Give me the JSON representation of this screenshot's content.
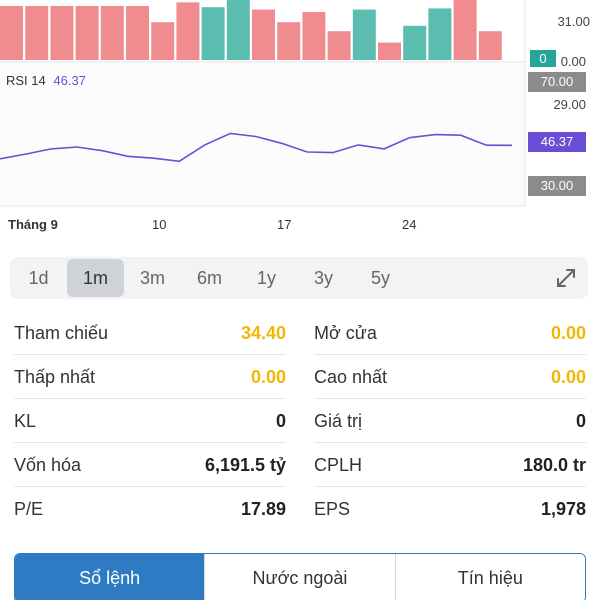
{
  "chart": {
    "volume_axis_top": "31.00",
    "volume_badge": "0",
    "volume_axis_zero": "0.00",
    "rsi_label": "RSI 14",
    "rsi_value": "46.37",
    "rsi_badge_upper": "70.00",
    "rsi_axis_29": "29.00",
    "rsi_badge_current": "46.37",
    "rsi_badge_lower": "30.00",
    "x_ticks": [
      "Tháng 9",
      "10",
      "17",
      "24"
    ],
    "colors": {
      "up": "#5bbdb0",
      "down": "#f08c8f",
      "rsi_line": "#6a4fd6",
      "badge_gray": "#8b8b8b"
    }
  },
  "chart_data": {
    "type": "bar",
    "volume_bars": [
      {
        "dir": "down",
        "level": 0.9
      },
      {
        "dir": "down",
        "level": 0.9
      },
      {
        "dir": "down",
        "level": 0.9
      },
      {
        "dir": "down",
        "level": 0.9
      },
      {
        "dir": "down",
        "level": 0.9
      },
      {
        "dir": "down",
        "level": 0.9
      },
      {
        "dir": "down",
        "level": 0.63
      },
      {
        "dir": "down",
        "level": 0.96
      },
      {
        "dir": "up",
        "level": 0.88
      },
      {
        "dir": "up",
        "level": 1.0
      },
      {
        "dir": "down",
        "level": 0.84
      },
      {
        "dir": "down",
        "level": 0.63
      },
      {
        "dir": "down",
        "level": 0.8
      },
      {
        "dir": "down",
        "level": 0.48
      },
      {
        "dir": "up",
        "level": 0.84
      },
      {
        "dir": "down",
        "level": 0.29
      },
      {
        "dir": "up",
        "level": 0.57
      },
      {
        "dir": "up",
        "level": 0.86
      },
      {
        "dir": "down",
        "level": 1.0
      },
      {
        "dir": "down",
        "level": 0.48
      }
    ],
    "rsi_series": [
      42,
      43.5,
      45.2,
      45.8,
      44.6,
      42.8,
      42.2,
      41.2,
      46.5,
      50.2,
      49.2,
      47.0,
      44.2,
      44.0,
      46.5,
      45.2,
      48.8,
      49.8,
      49.6,
      46.4,
      46.37
    ],
    "rsi_levels": [
      70,
      30
    ]
  },
  "ranges": [
    "1d",
    "1m",
    "3m",
    "6m",
    "1y",
    "3y",
    "5y"
  ],
  "active_range": "1m",
  "stats": {
    "rows": [
      {
        "l_label": "Tham chiếu",
        "l_value": "34.40",
        "r_label": "Mở cửa",
        "r_value": "0.00"
      },
      {
        "l_label": "Thấp nhất",
        "l_value": "0.00",
        "r_label": "Cao nhất",
        "r_value": "0.00"
      },
      {
        "l_label": "KL",
        "l_value": "0",
        "r_label": "Giá trị",
        "r_value": "0"
      },
      {
        "l_label": "Vốn hóa",
        "l_value": "6,191.5 tỷ",
        "r_label": "CPLH",
        "r_value": "180.0 tr"
      },
      {
        "l_label": "P/E",
        "l_value": "17.89",
        "r_label": "EPS",
        "r_value": "1,978"
      }
    ]
  },
  "tabs": [
    "Sổ lệnh",
    "Nước ngoài",
    "Tín hiệu"
  ],
  "active_tab": "Sổ lệnh"
}
